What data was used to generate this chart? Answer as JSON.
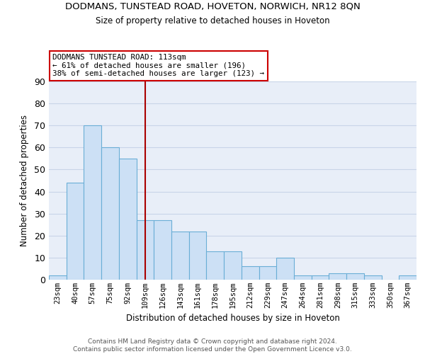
{
  "title": "DODMANS, TUNSTEAD ROAD, HOVETON, NORWICH, NR12 8QN",
  "subtitle": "Size of property relative to detached houses in Hoveton",
  "xlabel": "Distribution of detached houses by size in Hoveton",
  "ylabel": "Number of detached properties",
  "bar_labels": [
    "23sqm",
    "40sqm",
    "57sqm",
    "75sqm",
    "92sqm",
    "109sqm",
    "126sqm",
    "143sqm",
    "161sqm",
    "178sqm",
    "195sqm",
    "212sqm",
    "229sqm",
    "247sqm",
    "264sqm",
    "281sqm",
    "298sqm",
    "315sqm",
    "333sqm",
    "350sqm",
    "367sqm"
  ],
  "bar_values": [
    2,
    44,
    70,
    60,
    55,
    27,
    27,
    22,
    22,
    13,
    13,
    6,
    6,
    10,
    2,
    2,
    3,
    3,
    2,
    0,
    2
  ],
  "bar_color": "#cce0f5",
  "bar_edge_color": "#6aaed6",
  "vline_color": "#aa0000",
  "annotation_text": "DODMANS TUNSTEAD ROAD: 113sqm\n← 61% of detached houses are smaller (196)\n38% of semi-detached houses are larger (123) →",
  "annotation_box_color": "white",
  "annotation_box_edge": "#cc0000",
  "ylim": [
    0,
    90
  ],
  "yticks": [
    0,
    10,
    20,
    30,
    40,
    50,
    60,
    70,
    80,
    90
  ],
  "grid_color": "#c8d4e8",
  "background_color": "#e8eef8",
  "footer_line1": "Contains HM Land Registry data © Crown copyright and database right 2024.",
  "footer_line2": "Contains public sector information licensed under the Open Government Licence v3.0."
}
